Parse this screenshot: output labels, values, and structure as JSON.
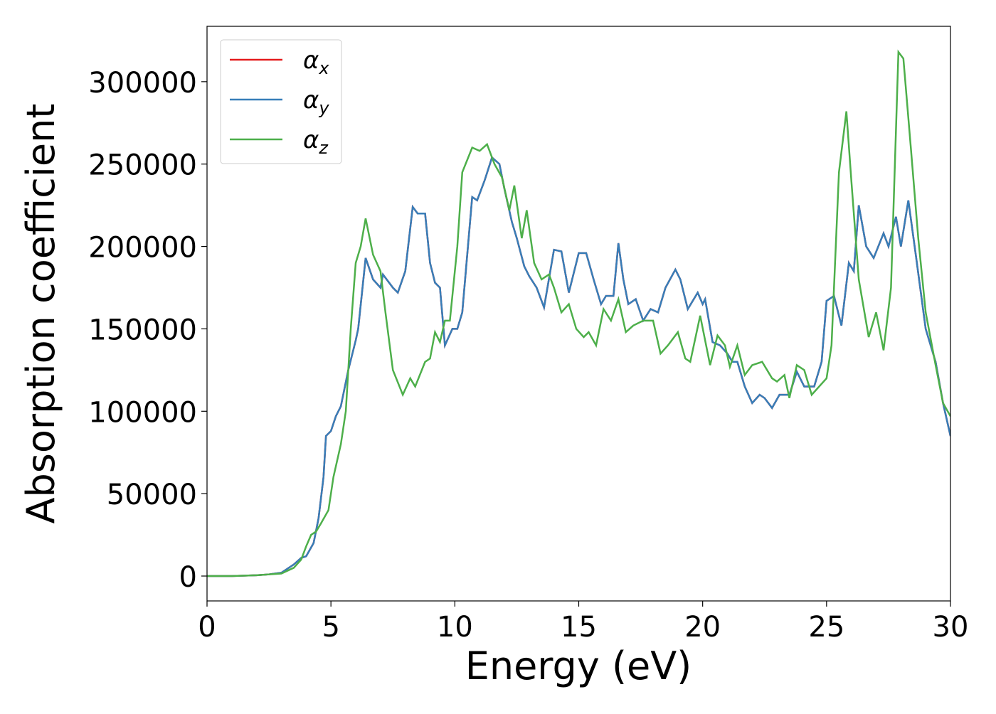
{
  "chart_data": {
    "type": "line",
    "xlabel": "Energy (eV)",
    "ylabel": "Absorption coefficient",
    "xlim": [
      0,
      30
    ],
    "xticks": [
      0,
      5,
      10,
      15,
      20,
      25,
      30
    ],
    "ylim": [
      -15100,
      333600
    ],
    "yticks": [
      0,
      50000,
      100000,
      150000,
      200000,
      250000,
      300000
    ],
    "grid": false,
    "legend": "upper left",
    "series": [
      {
        "name": "αx",
        "color": "#e41a1c",
        "x": [
          0,
          1,
          2,
          2.5,
          3,
          3.5,
          3.8,
          4.0,
          4.3,
          4.5,
          4.7,
          4.8,
          5.0,
          5.2,
          5.4,
          5.7,
          6.0,
          6.1,
          6.4,
          6.7,
          7.0,
          7.1,
          7.5,
          7.7,
          8.0,
          8.3,
          8.5,
          8.8,
          9.0,
          9.2,
          9.4,
          9.6,
          9.9,
          10.1,
          10.3,
          10.7,
          10.9,
          11.2,
          11.5,
          11.8,
          12.0,
          12.3,
          12.5,
          12.8,
          13.0,
          13.3,
          13.6,
          14.0,
          14.3,
          14.6,
          15.0,
          15.3,
          15.6,
          15.9,
          16.1,
          16.4,
          16.6,
          16.8,
          17.0,
          17.3,
          17.6,
          17.9,
          18.2,
          18.5,
          18.9,
          19.1,
          19.4,
          19.8,
          20.0,
          20.1,
          20.4,
          20.7,
          21.0,
          21.2,
          21.4,
          21.7,
          22.0,
          22.3,
          22.5,
          22.8,
          23.1,
          23.5,
          23.8,
          24.1,
          24.5,
          24.8,
          25.0,
          25.3,
          25.6,
          25.9,
          26.1,
          26.3,
          26.6,
          26.9,
          27.3,
          27.5,
          27.8,
          28.0,
          28.3,
          28.6,
          29.0,
          29.4,
          29.7,
          30.0
        ],
        "values": [
          0,
          0,
          500,
          1000,
          2000,
          7000,
          11000,
          12000,
          20000,
          35000,
          60000,
          85000,
          88000,
          97000,
          103000,
          125000,
          143000,
          150000,
          193000,
          180000,
          175000,
          183000,
          175000,
          172000,
          185000,
          224000,
          220000,
          220000,
          190000,
          178000,
          175000,
          140000,
          150000,
          150000,
          160000,
          230000,
          228000,
          240000,
          254000,
          250000,
          235000,
          215000,
          205000,
          188000,
          182000,
          175000,
          163000,
          198000,
          197000,
          172000,
          196000,
          196000,
          180000,
          165000,
          170000,
          170000,
          202000,
          180000,
          165000,
          168000,
          155000,
          162000,
          160000,
          175000,
          186000,
          180000,
          162000,
          172000,
          165000,
          168000,
          142000,
          140000,
          135000,
          130000,
          130000,
          115000,
          105000,
          110000,
          108000,
          102000,
          110000,
          110000,
          124000,
          115000,
          115000,
          130000,
          167000,
          170000,
          152000,
          190000,
          185000,
          225000,
          200000,
          193000,
          208000,
          200000,
          218000,
          200000,
          228000,
          195000,
          150000,
          130000,
          105000,
          85000
        ]
      },
      {
        "name": "αy",
        "color": "#377eb8",
        "x": [
          0,
          1,
          2,
          2.5,
          3,
          3.5,
          3.8,
          4.0,
          4.3,
          4.5,
          4.7,
          4.8,
          5.0,
          5.2,
          5.4,
          5.7,
          6.0,
          6.1,
          6.4,
          6.7,
          7.0,
          7.1,
          7.5,
          7.7,
          8.0,
          8.3,
          8.5,
          8.8,
          9.0,
          9.2,
          9.4,
          9.6,
          9.9,
          10.1,
          10.3,
          10.7,
          10.9,
          11.2,
          11.5,
          11.8,
          12.0,
          12.3,
          12.5,
          12.8,
          13.0,
          13.3,
          13.6,
          14.0,
          14.3,
          14.6,
          15.0,
          15.3,
          15.6,
          15.9,
          16.1,
          16.4,
          16.6,
          16.8,
          17.0,
          17.3,
          17.6,
          17.9,
          18.2,
          18.5,
          18.9,
          19.1,
          19.4,
          19.8,
          20.0,
          20.1,
          20.4,
          20.7,
          21.0,
          21.2,
          21.4,
          21.7,
          22.0,
          22.3,
          22.5,
          22.8,
          23.1,
          23.5,
          23.8,
          24.1,
          24.5,
          24.8,
          25.0,
          25.3,
          25.6,
          25.9,
          26.1,
          26.3,
          26.6,
          26.9,
          27.3,
          27.5,
          27.8,
          28.0,
          28.3,
          28.6,
          29.0,
          29.4,
          29.7,
          30.0
        ],
        "values": [
          0,
          0,
          500,
          1000,
          2000,
          7000,
          11000,
          12000,
          20000,
          35000,
          60000,
          85000,
          88000,
          97000,
          103000,
          125000,
          143000,
          150000,
          193000,
          180000,
          175000,
          183000,
          175000,
          172000,
          185000,
          224000,
          220000,
          220000,
          190000,
          178000,
          175000,
          140000,
          150000,
          150000,
          160000,
          230000,
          228000,
          240000,
          254000,
          250000,
          235000,
          215000,
          205000,
          188000,
          182000,
          175000,
          163000,
          198000,
          197000,
          172000,
          196000,
          196000,
          180000,
          165000,
          170000,
          170000,
          202000,
          180000,
          165000,
          168000,
          155000,
          162000,
          160000,
          175000,
          186000,
          180000,
          162000,
          172000,
          165000,
          168000,
          142000,
          140000,
          135000,
          130000,
          130000,
          115000,
          105000,
          110000,
          108000,
          102000,
          110000,
          110000,
          124000,
          115000,
          115000,
          130000,
          167000,
          170000,
          152000,
          190000,
          185000,
          225000,
          200000,
          193000,
          208000,
          200000,
          218000,
          200000,
          228000,
          195000,
          150000,
          130000,
          105000,
          85000
        ]
      },
      {
        "name": "αz",
        "color": "#4daf4a",
        "x": [
          0,
          1,
          2,
          2.5,
          3,
          3.5,
          3.8,
          4.0,
          4.2,
          4.4,
          4.6,
          4.9,
          5.1,
          5.4,
          5.6,
          5.8,
          6.0,
          6.2,
          6.4,
          6.7,
          7.0,
          7.2,
          7.5,
          7.9,
          8.2,
          8.4,
          8.8,
          9.0,
          9.2,
          9.4,
          9.6,
          9.8,
          10.1,
          10.3,
          10.7,
          11.0,
          11.3,
          11.6,
          11.9,
          12.2,
          12.4,
          12.7,
          12.9,
          13.2,
          13.5,
          13.8,
          14.0,
          14.3,
          14.6,
          14.9,
          15.2,
          15.4,
          15.7,
          16.0,
          16.3,
          16.6,
          16.9,
          17.2,
          17.6,
          18.0,
          18.3,
          18.6,
          19.0,
          19.3,
          19.5,
          19.9,
          20.3,
          20.6,
          20.9,
          21.1,
          21.4,
          21.7,
          22.0,
          22.4,
          22.8,
          23.0,
          23.3,
          23.5,
          23.8,
          24.1,
          24.4,
          24.7,
          25.0,
          25.2,
          25.5,
          25.8,
          26.0,
          26.3,
          26.7,
          27.0,
          27.3,
          27.6,
          27.9,
          28.1,
          28.4,
          28.7,
          29.0,
          29.4,
          29.7,
          30.0
        ],
        "values": [
          0,
          0,
          500,
          1000,
          1500,
          5000,
          10000,
          18000,
          25000,
          27000,
          32000,
          40000,
          60000,
          80000,
          100000,
          150000,
          190000,
          200000,
          217000,
          195000,
          185000,
          160000,
          125000,
          110000,
          120000,
          115000,
          130000,
          132000,
          148000,
          142000,
          155000,
          155000,
          200000,
          245000,
          260000,
          258000,
          262000,
          250000,
          242000,
          222000,
          237000,
          205000,
          222000,
          190000,
          180000,
          183000,
          175000,
          160000,
          165000,
          150000,
          145000,
          148000,
          140000,
          162000,
          155000,
          168000,
          148000,
          152000,
          155000,
          155000,
          135000,
          140000,
          148000,
          132000,
          130000,
          158000,
          128000,
          146000,
          140000,
          127000,
          140000,
          122000,
          128000,
          130000,
          120000,
          118000,
          122000,
          108000,
          128000,
          125000,
          110000,
          115000,
          120000,
          140000,
          245000,
          282000,
          240000,
          180000,
          145000,
          160000,
          137000,
          175000,
          318000,
          314000,
          260000,
          205000,
          160000,
          128000,
          105000,
          97000
        ]
      }
    ]
  }
}
